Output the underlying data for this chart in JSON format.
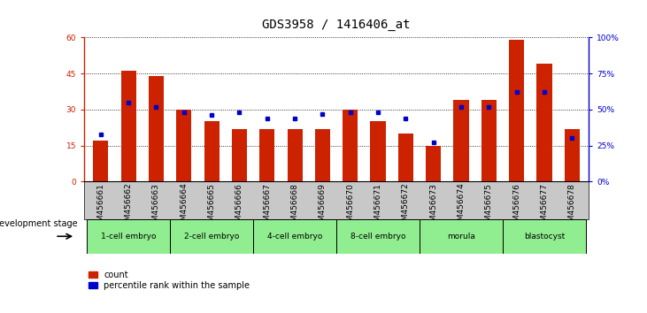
{
  "title": "GDS3958 / 1416406_at",
  "samples": [
    "GSM456661",
    "GSM456662",
    "GSM456663",
    "GSM456664",
    "GSM456665",
    "GSM456666",
    "GSM456667",
    "GSM456668",
    "GSM456669",
    "GSM456670",
    "GSM456671",
    "GSM456672",
    "GSM456673",
    "GSM456674",
    "GSM456675",
    "GSM456676",
    "GSM456677",
    "GSM456678"
  ],
  "counts": [
    17,
    46,
    44,
    30,
    25,
    22,
    22,
    22,
    22,
    30,
    25,
    20,
    15,
    34,
    34,
    59,
    49,
    22
  ],
  "percentiles": [
    33,
    55,
    52,
    48,
    46,
    48,
    44,
    44,
    47,
    48,
    48,
    44,
    27,
    52,
    52,
    62,
    62,
    30
  ],
  "bar_color": "#cc2200",
  "dot_color": "#0000cc",
  "ylim_left": [
    0,
    60
  ],
  "ylim_right": [
    0,
    100
  ],
  "yticks_left": [
    0,
    15,
    30,
    45,
    60
  ],
  "yticks_right": [
    0,
    25,
    50,
    75,
    100
  ],
  "ytick_labels_right": [
    "0%",
    "25%",
    "50%",
    "75%",
    "100%"
  ],
  "stage_groups": [
    {
      "label": "1-cell embryo",
      "start": 0,
      "end": 3
    },
    {
      "label": "2-cell embryo",
      "start": 3,
      "end": 6
    },
    {
      "label": "4-cell embryo",
      "start": 6,
      "end": 9
    },
    {
      "label": "8-cell embryo",
      "start": 9,
      "end": 12
    },
    {
      "label": "morula",
      "start": 12,
      "end": 15
    },
    {
      "label": "blastocyst",
      "start": 15,
      "end": 18
    }
  ],
  "stage_color": "#90EE90",
  "sample_bg_color": "#c8c8c8",
  "dev_stage_label": "development stage",
  "legend_count_label": "count",
  "legend_pct_label": "percentile rank within the sample",
  "background_color": "#ffffff",
  "plot_bg_color": "#ffffff",
  "title_fontsize": 10,
  "tick_fontsize": 6.5,
  "bar_width": 0.55
}
